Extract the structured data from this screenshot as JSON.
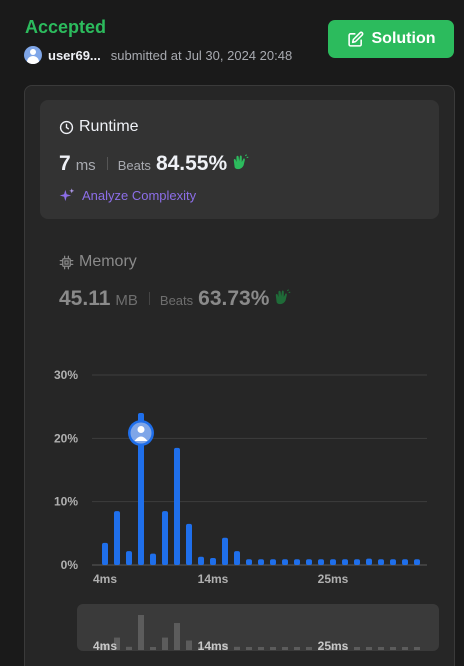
{
  "header": {
    "status": "Accepted",
    "username": "user69...",
    "submitted": "submitted at Jul 30, 2024 20:48",
    "solution_label": "Solution"
  },
  "runtime": {
    "title": "Runtime",
    "value": "7",
    "unit": "ms",
    "beats_label": "Beats",
    "beats_value": "84.55%",
    "analyze_label": "Analyze Complexity"
  },
  "memory": {
    "title": "Memory",
    "value": "45.11",
    "unit": "MB",
    "beats_label": "Beats",
    "beats_value": "63.73%"
  },
  "colors": {
    "accent_green": "#2cbb5d",
    "bar_blue": "#1f6feb",
    "analyze_purple": "#8c6ee8"
  },
  "chart_data": {
    "type": "bar",
    "ylabel": "",
    "xlabel": "",
    "ylim": [
      0,
      30
    ],
    "y_ticks": [
      "30%",
      "20%",
      "10%",
      "0%"
    ],
    "y_tick_values": [
      30,
      20,
      10,
      0
    ],
    "x_tick_labels": [
      "4ms",
      "14ms",
      "25ms"
    ],
    "x_tick_indices": [
      0,
      9,
      19
    ],
    "selected_index": 3,
    "values": [
      3.5,
      8.5,
      2.2,
      24,
      1.8,
      8.5,
      18.5,
      6.5,
      1.3,
      1.1,
      4.3,
      2.2,
      0.9,
      0.9,
      0.9,
      0.9,
      0.9,
      0.9,
      0.9,
      0.9,
      0.9,
      0.9,
      1.0,
      0.9,
      0.9,
      0.9,
      0.9
    ],
    "navigator_labels": [
      "4ms",
      "14ms",
      "25ms"
    ]
  }
}
